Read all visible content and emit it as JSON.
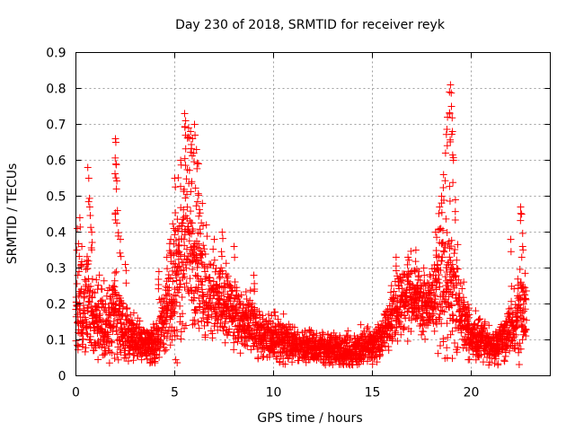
{
  "chart_data": {
    "type": "scatter",
    "title": "Day 230 of 2018, SRMTID for receiver reyk",
    "xlabel": "GPS time / hours",
    "ylabel": "SRMTID / TECUs",
    "xlim": [
      0,
      24
    ],
    "ylim": [
      0,
      0.9
    ],
    "xticks": [
      0,
      5,
      10,
      15,
      20
    ],
    "xtick_labels": [
      "0",
      "5",
      "10",
      "15",
      "20"
    ],
    "yticks": [
      0,
      0.1,
      0.2,
      0.3,
      0.4,
      0.5,
      0.6,
      0.7,
      0.8,
      0.9
    ],
    "ytick_labels": [
      "0",
      "0.1",
      "0.2",
      "0.3",
      "0.4",
      "0.5",
      "0.6",
      "0.7",
      "0.8",
      "0.9"
    ],
    "grid": true,
    "marker": "+",
    "color": "#ff0000",
    "profile": [
      [
        0.0,
        0.17,
        0.08
      ],
      [
        0.5,
        0.18,
        0.09
      ],
      [
        1.0,
        0.16,
        0.07
      ],
      [
        1.5,
        0.15,
        0.06
      ],
      [
        2.0,
        0.17,
        0.09
      ],
      [
        2.5,
        0.12,
        0.05
      ],
      [
        3.0,
        0.1,
        0.04
      ],
      [
        3.5,
        0.09,
        0.03
      ],
      [
        4.0,
        0.08,
        0.03
      ],
      [
        4.5,
        0.15,
        0.07
      ],
      [
        5.0,
        0.25,
        0.12
      ],
      [
        5.5,
        0.35,
        0.15
      ],
      [
        6.0,
        0.32,
        0.14
      ],
      [
        6.5,
        0.24,
        0.09
      ],
      [
        7.0,
        0.21,
        0.07
      ],
      [
        7.5,
        0.2,
        0.07
      ],
      [
        8.0,
        0.17,
        0.06
      ],
      [
        8.5,
        0.15,
        0.05
      ],
      [
        9.0,
        0.13,
        0.05
      ],
      [
        9.5,
        0.11,
        0.04
      ],
      [
        10.0,
        0.1,
        0.04
      ],
      [
        10.5,
        0.1,
        0.04
      ],
      [
        11.0,
        0.09,
        0.03
      ],
      [
        11.5,
        0.08,
        0.03
      ],
      [
        12.0,
        0.08,
        0.03
      ],
      [
        12.5,
        0.08,
        0.03
      ],
      [
        13.0,
        0.07,
        0.03
      ],
      [
        13.5,
        0.07,
        0.03
      ],
      [
        14.0,
        0.07,
        0.03
      ],
      [
        14.5,
        0.08,
        0.03
      ],
      [
        15.0,
        0.09,
        0.03
      ],
      [
        15.5,
        0.11,
        0.04
      ],
      [
        16.0,
        0.17,
        0.06
      ],
      [
        16.5,
        0.21,
        0.06
      ],
      [
        17.0,
        0.22,
        0.06
      ],
      [
        17.5,
        0.21,
        0.06
      ],
      [
        18.0,
        0.2,
        0.06
      ],
      [
        18.5,
        0.26,
        0.12
      ],
      [
        19.0,
        0.28,
        0.14
      ],
      [
        19.5,
        0.16,
        0.06
      ],
      [
        20.0,
        0.11,
        0.04
      ],
      [
        20.5,
        0.1,
        0.04
      ],
      [
        21.0,
        0.09,
        0.04
      ],
      [
        21.5,
        0.1,
        0.04
      ],
      [
        22.0,
        0.13,
        0.06
      ],
      [
        22.5,
        0.17,
        0.08
      ],
      [
        22.8,
        0.2,
        0.07
      ]
    ],
    "spikes": [
      [
        0.07,
        0.41
      ],
      [
        0.2,
        0.44
      ],
      [
        0.3,
        0.36
      ],
      [
        0.6,
        0.58
      ],
      [
        0.65,
        0.55
      ],
      [
        0.7,
        0.47
      ],
      [
        0.8,
        0.4
      ],
      [
        2.0,
        0.66
      ],
      [
        2.02,
        0.65
      ],
      [
        2.05,
        0.52
      ],
      [
        2.1,
        0.46
      ],
      [
        2.25,
        0.38
      ],
      [
        2.5,
        0.31
      ],
      [
        4.2,
        0.29
      ],
      [
        4.6,
        0.33
      ],
      [
        4.8,
        0.38
      ],
      [
        5.0,
        0.55
      ],
      [
        5.3,
        0.6
      ],
      [
        5.5,
        0.73
      ],
      [
        5.55,
        0.71
      ],
      [
        5.7,
        0.69
      ],
      [
        5.8,
        0.68
      ],
      [
        5.9,
        0.66
      ],
      [
        6.0,
        0.7
      ],
      [
        6.1,
        0.63
      ],
      [
        6.2,
        0.59
      ],
      [
        6.4,
        0.48
      ],
      [
        6.6,
        0.42
      ],
      [
        7.0,
        0.38
      ],
      [
        7.4,
        0.4
      ],
      [
        8.0,
        0.36
      ],
      [
        9.0,
        0.28
      ],
      [
        16.2,
        0.33
      ],
      [
        16.8,
        0.33
      ],
      [
        17.2,
        0.35
      ],
      [
        17.6,
        0.3
      ],
      [
        18.2,
        0.4
      ],
      [
        18.4,
        0.47
      ],
      [
        18.5,
        0.5
      ],
      [
        18.6,
        0.56
      ],
      [
        18.7,
        0.62
      ],
      [
        18.8,
        0.72
      ],
      [
        18.9,
        0.79
      ],
      [
        18.95,
        0.81
      ],
      [
        19.0,
        0.75
      ],
      [
        19.05,
        0.68
      ],
      [
        19.1,
        0.6
      ],
      [
        19.2,
        0.49
      ],
      [
        22.0,
        0.38
      ],
      [
        22.5,
        0.47
      ],
      [
        22.55,
        0.45
      ],
      [
        22.6,
        0.36
      ]
    ],
    "sample_interval_hours": 0.01,
    "random_seed": 230
  }
}
